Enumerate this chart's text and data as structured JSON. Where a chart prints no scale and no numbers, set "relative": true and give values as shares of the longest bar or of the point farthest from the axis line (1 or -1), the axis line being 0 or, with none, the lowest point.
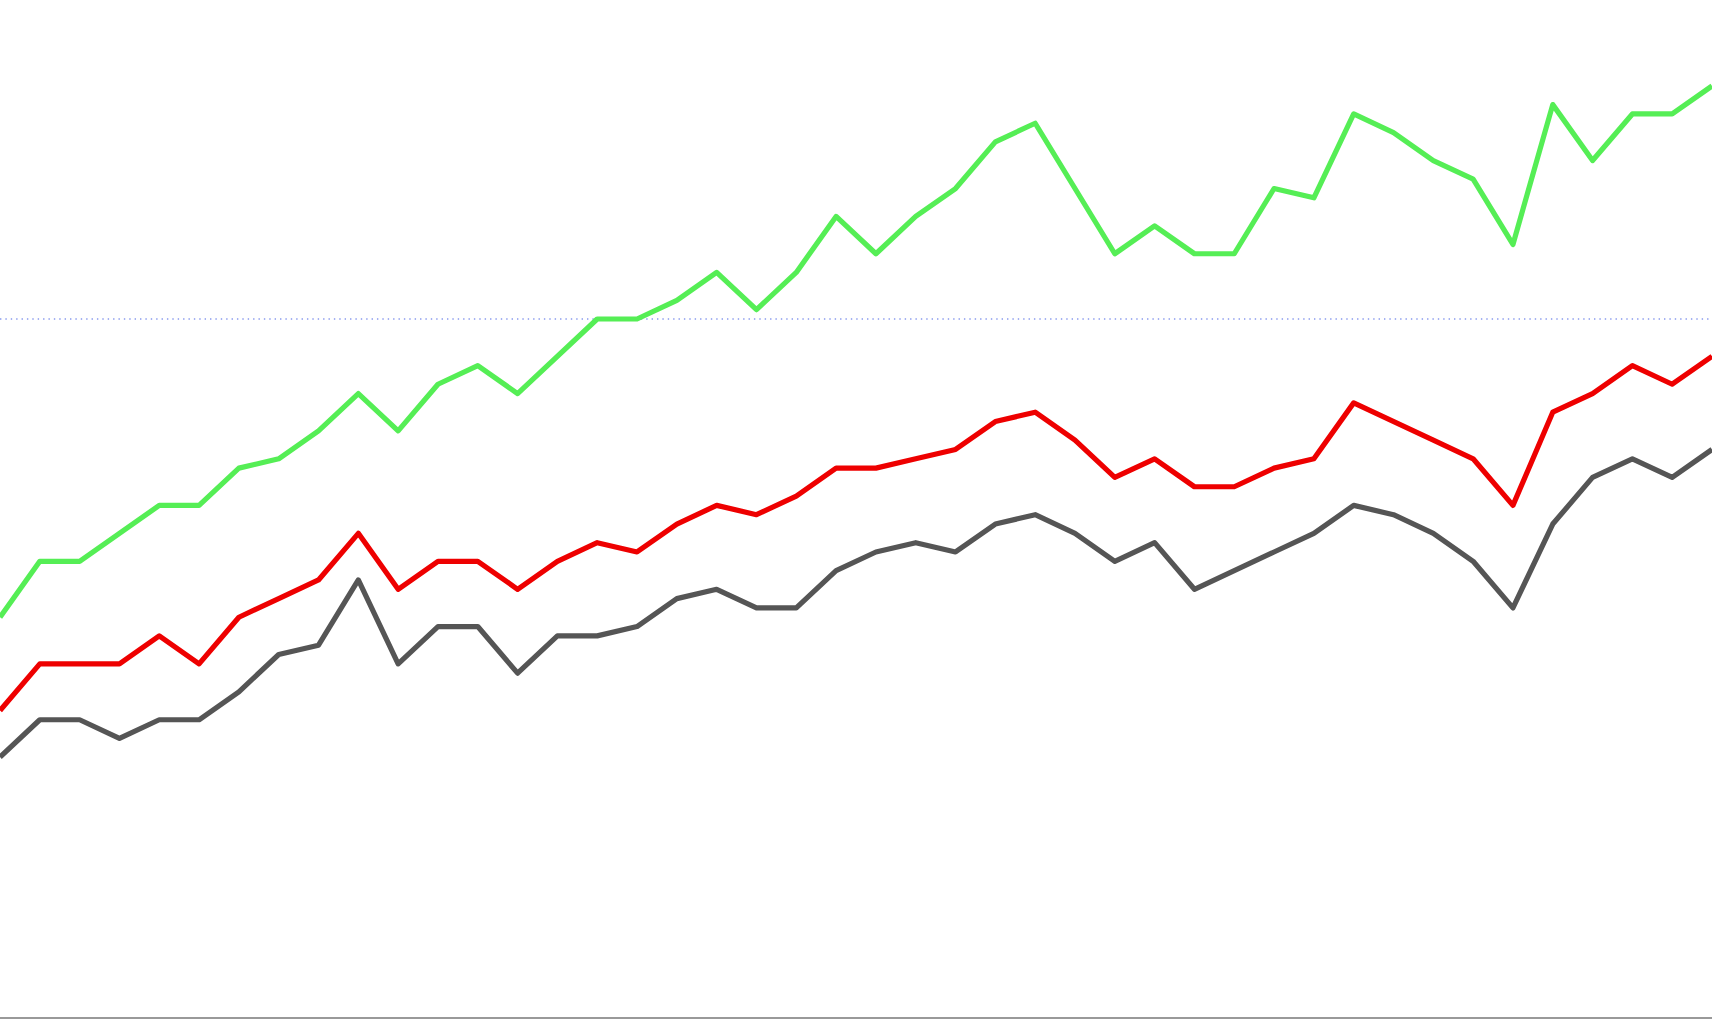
{
  "chart_data": {
    "type": "line",
    "relative": true,
    "marker": "none",
    "line_style": "solid",
    "categories": [
      null,
      null,
      null,
      null,
      null,
      null,
      null,
      null,
      null,
      null,
      null,
      null,
      null,
      null,
      null,
      null,
      null,
      null,
      null,
      null,
      null,
      null,
      null,
      null,
      null,
      null,
      null,
      null,
      null,
      null,
      null,
      null,
      null,
      null,
      null,
      null,
      null,
      null,
      null,
      null,
      null,
      null,
      null,
      null
    ],
    "series": [
      {
        "color": "#55ee55",
        "values": [
          0.43,
          0.49,
          0.49,
          0.52,
          0.55,
          0.55,
          0.59,
          0.6,
          0.63,
          0.67,
          0.63,
          0.68,
          0.7,
          0.67,
          0.71,
          0.75,
          0.75,
          0.77,
          0.8,
          0.76,
          0.8,
          0.86,
          0.82,
          0.86,
          0.89,
          0.94,
          0.96,
          0.89,
          0.82,
          0.85,
          0.82,
          0.82,
          0.89,
          0.88,
          0.97,
          0.95,
          0.92,
          0.9,
          0.83,
          0.98,
          0.92,
          0.97,
          0.97,
          1
        ]
      },
      {
        "color": "#ee0000",
        "values": [
          0.33,
          0.38,
          0.38,
          0.38,
          0.41,
          0.38,
          0.43,
          0.45,
          0.47,
          0.52,
          0.46,
          0.49,
          0.49,
          0.46,
          0.49,
          0.51,
          0.5,
          0.53,
          0.55,
          0.54,
          0.56,
          0.59,
          0.59,
          0.6,
          0.61,
          0.64,
          0.65,
          0.62,
          0.58,
          0.6,
          0.57,
          0.57,
          0.59,
          0.6,
          0.66,
          0.64,
          0.62,
          0.6,
          0.55,
          0.65,
          0.67,
          0.7,
          0.68,
          0.71
        ]
      },
      {
        "color": "#555555",
        "values": [
          0.28,
          0.32,
          0.32,
          0.3,
          0.32,
          0.32,
          0.35,
          0.39,
          0.4,
          0.47,
          0.38,
          0.42,
          0.42,
          0.37,
          0.41,
          0.41,
          0.42,
          0.45,
          0.46,
          0.44,
          0.44,
          0.48,
          0.5,
          0.51,
          0.5,
          0.53,
          0.54,
          0.52,
          0.49,
          0.51,
          0.46,
          0.48,
          0.5,
          0.52,
          0.55,
          0.54,
          0.52,
          0.49,
          0.44,
          0.53,
          0.58,
          0.6,
          0.58,
          0.61
        ]
      }
    ],
    "ref_lines": [
      {
        "axis": "y",
        "value": 0.75,
        "color": "#8899ee",
        "line_style": "dotted"
      }
    ]
  }
}
